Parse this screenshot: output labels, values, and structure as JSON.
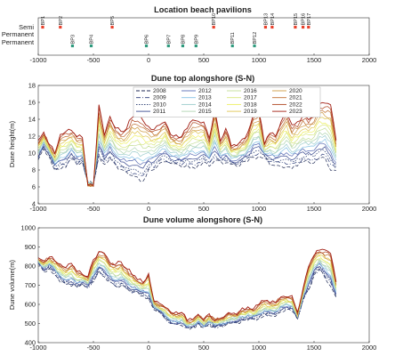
{
  "figure": {
    "background": "#ffffff"
  },
  "chart_data": [
    {
      "type": "scatter",
      "title": "Location beach pavilions",
      "xlabel": "",
      "ylabel": "",
      "xlim": [
        -1000,
        2000
      ],
      "ylim": [
        0.5,
        2.5
      ],
      "y_categories": [
        "Permanent",
        "Semi Permanent"
      ],
      "x_ticks": [
        -1000,
        -500,
        0,
        500,
        1000,
        1500,
        2000
      ],
      "series": [
        {
          "color": "#e8412c",
          "points": [
            {
              "label": "BP1",
              "x": -960,
              "y": 2
            },
            {
              "label": "BP2",
              "x": -800,
              "y": 2
            },
            {
              "label": "BP5",
              "x": -330,
              "y": 2
            },
            {
              "label": "BP10",
              "x": 590,
              "y": 2
            },
            {
              "label": "BP13",
              "x": 1060,
              "y": 2
            },
            {
              "label": "BP14",
              "x": 1120,
              "y": 2
            },
            {
              "label": "BP15",
              "x": 1330,
              "y": 2
            },
            {
              "label": "BP16",
              "x": 1400,
              "y": 2
            },
            {
              "label": "BP17",
              "x": 1450,
              "y": 2
            }
          ]
        },
        {
          "color": "#2f9a7e",
          "points": [
            {
              "label": "BP3",
              "x": -690,
              "y": 1
            },
            {
              "label": "BP4",
              "x": -520,
              "y": 1
            },
            {
              "label": "BP6",
              "x": -20,
              "y": 1
            },
            {
              "label": "BP7",
              "x": 180,
              "y": 1
            },
            {
              "label": "BP8",
              "x": 310,
              "y": 1
            },
            {
              "label": "BP9",
              "x": 430,
              "y": 1
            },
            {
              "label": "BP11",
              "x": 760,
              "y": 1
            },
            {
              "label": "BP12",
              "x": 960,
              "y": 1
            }
          ]
        }
      ]
    },
    {
      "type": "line",
      "title": "Dune top alongshore (S-N)",
      "xlabel": "",
      "ylabel": "Dune height(m)",
      "xlim": [
        -1000,
        2000
      ],
      "ylim": [
        4,
        18
      ],
      "x_ticks": [
        -1000,
        -500,
        0,
        500,
        1000,
        1500,
        2000
      ],
      "y_ticks": [
        4,
        6,
        8,
        10,
        12,
        14,
        16,
        18
      ],
      "legend": "top-center, 4 columns",
      "series_years": [
        "2008",
        "2009",
        "2010",
        "2011",
        "2012",
        "2013",
        "2014",
        "2015",
        "2016",
        "2017",
        "2018",
        "2019",
        "2020",
        "2021",
        "2022",
        "2023"
      ],
      "x": [
        -1000,
        -950,
        -900,
        -850,
        -800,
        -750,
        -700,
        -650,
        -600,
        -550,
        -500,
        -450,
        -400,
        -350,
        -300,
        -250,
        -200,
        -150,
        -100,
        -50,
        0,
        50,
        100,
        150,
        200,
        250,
        300,
        350,
        400,
        450,
        500,
        550,
        600,
        650,
        700,
        750,
        800,
        850,
        900,
        950,
        1000,
        1050,
        1100,
        1150,
        1200,
        1250,
        1300,
        1350,
        1400,
        1450,
        1500,
        1550,
        1600,
        1650,
        1700
      ],
      "base_2008": [
        9.2,
        10.5,
        9.6,
        8.1,
        8.2,
        8.3,
        9.4,
        8.6,
        8.9,
        6.5,
        6.3,
        9.5,
        8.7,
        9.3,
        8.5,
        8.1,
        7.6,
        7.2,
        7.0,
        6.8,
        7.9,
        8.1,
        8.7,
        9.0,
        8.7,
        8.6,
        8.4,
        8.5,
        8.3,
        8.4,
        8.9,
        8.6,
        9.1,
        8.9,
        8.8,
        8.6,
        8.5,
        8.9,
        9.1,
        9.4,
        9.7,
        9.5,
        8.7,
        8.6,
        8.5,
        8.4,
        8.3,
        8.6,
        8.9,
        9.1,
        8.8,
        9.2,
        9.5,
        8.1,
        7.8
      ],
      "top_2023": [
        11.4,
        12.4,
        11.1,
        10.0,
        12.2,
        12.5,
        12.7,
        12.0,
        11.9,
        6.2,
        6.1,
        15.7,
        12.2,
        14.4,
        13.0,
        12.5,
        13.0,
        14.3,
        14.4,
        14.0,
        13.1,
        12.9,
        13.2,
        13.8,
        12.2,
        12.0,
        12.0,
        12.9,
        13.9,
        13.8,
        13.6,
        11.6,
        15.3,
        11.5,
        12.8,
        10.9,
        11.0,
        11.5,
        12.3,
        14.6,
        15.0,
        11.1,
        12.4,
        12.0,
        13.7,
        14.9,
        13.2,
        13.6,
        14.4,
        14.0,
        14.5,
        16.0,
        15.8,
        15.8,
        11.6
      ]
    },
    {
      "type": "line",
      "title": "Dune volume alongshore (S-N)",
      "xlabel": "",
      "ylabel": "Dune volume(m)",
      "xlim": [
        -1000,
        2000
      ],
      "ylim": [
        400,
        1000
      ],
      "x_ticks": [
        -1000,
        -500,
        0,
        500,
        1000,
        1500,
        2000
      ],
      "y_ticks": [
        400,
        500,
        600,
        700,
        800,
        900,
        1000
      ],
      "series_years": [
        "2008",
        "2009",
        "2010",
        "2011",
        "2012",
        "2013",
        "2014",
        "2015",
        "2016",
        "2017",
        "2018",
        "2019",
        "2020",
        "2021",
        "2022",
        "2023"
      ],
      "x": [
        -1000,
        -950,
        -900,
        -850,
        -800,
        -750,
        -700,
        -650,
        -600,
        -550,
        -500,
        -450,
        -400,
        -350,
        -300,
        -250,
        -200,
        -150,
        -100,
        -50,
        0,
        50,
        100,
        150,
        200,
        250,
        300,
        350,
        400,
        450,
        500,
        550,
        600,
        650,
        700,
        750,
        800,
        850,
        900,
        950,
        1000,
        1050,
        1100,
        1150,
        1200,
        1250,
        1300,
        1350,
        1400,
        1450,
        1500,
        1550,
        1600,
        1650,
        1700
      ],
      "base_2008": [
        815,
        770,
        790,
        760,
        720,
        705,
        700,
        690,
        705,
        685,
        720,
        770,
        745,
        715,
        690,
        700,
        680,
        660,
        660,
        650,
        625,
        575,
        555,
        525,
        500,
        490,
        490,
        475,
        480,
        495,
        475,
        495,
        480,
        485,
        490,
        500,
        505,
        515,
        520,
        520,
        530,
        545,
        545,
        540,
        565,
        575,
        570,
        525,
        620,
        680,
        750,
        780,
        740,
        700,
        630
      ],
      "top_2023": [
        840,
        825,
        850,
        830,
        810,
        790,
        815,
        775,
        760,
        745,
        830,
        875,
        870,
        820,
        810,
        820,
        790,
        760,
        730,
        720,
        760,
        620,
        600,
        590,
        560,
        555,
        560,
        515,
        520,
        550,
        520,
        545,
        520,
        530,
        540,
        555,
        550,
        575,
        580,
        575,
        600,
        620,
        610,
        610,
        640,
        640,
        640,
        555,
        680,
        800,
        860,
        890,
        880,
        870,
        720
      ]
    }
  ],
  "palette": {
    "dark_years": [
      "#1f2a55",
      "#2a3a78",
      "#20356b",
      "#3a4a90",
      "#5a6db5"
    ],
    "grad_start": "#86c3e6",
    "grad_mid": "#eef063",
    "grad_end": "#a11d12",
    "label_color": "#222222"
  }
}
